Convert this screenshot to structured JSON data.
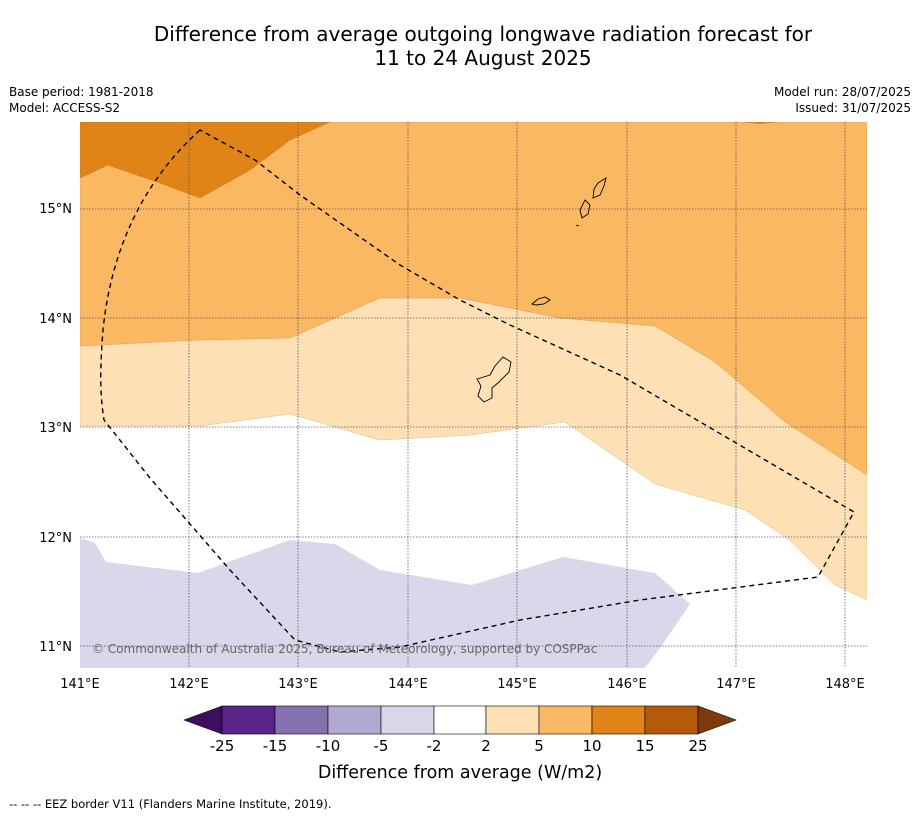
{
  "title": {
    "line1": "Difference from average outgoing longwave radiation forecast for",
    "line2": "11 to 24 August 2025"
  },
  "meta": {
    "base_period": "Base period: 1981-2018",
    "model": "Model: ACCESS-S2",
    "model_run": "Model run: 28/07/2025",
    "issued": "Issued: 31/07/2025"
  },
  "map": {
    "lon_labels": [
      "141°E",
      "142°E",
      "143°E",
      "144°E",
      "145°E",
      "146°E",
      "147°E",
      "148°E"
    ],
    "lat_labels": [
      "15°N",
      "14°N",
      "13°N",
      "12°N",
      "11°N"
    ],
    "copyright": "© Commonwealth of Australia 2025, Bureau of Meteorology, supported by COSPPac",
    "lon_range": [
      141.0,
      148.2
    ],
    "lat_range": [
      10.8,
      15.8
    ]
  },
  "colorbar": {
    "tick_labels": [
      "-25",
      "-15",
      "-10",
      "-5",
      "-2",
      "2",
      "5",
      "10",
      "15",
      "25"
    ],
    "colors": [
      "#3d0e5e",
      "#5a2389",
      "#8371b0",
      "#b1a9d2",
      "#d8d8ea",
      "#ffffff",
      "#fde0b4",
      "#fbb862",
      "#e08418",
      "#b45a0b",
      "#7e3a0b"
    ],
    "label": "Difference from average (W/m2)"
  },
  "footer": {
    "eez_note": "--  --  -- EEZ border V11 (Flanders Marine Institute, 2019)."
  }
}
